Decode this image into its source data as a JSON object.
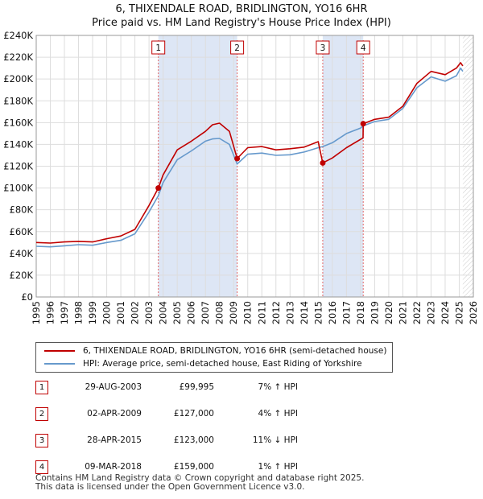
{
  "title_line1": "6, THIXENDALE ROAD, BRIDLINGTON, YO16 6HR",
  "title_line2": "Price paid vs. HM Land Registry's House Price Index (HPI)",
  "colors": {
    "property": "#c00000",
    "hpi": "#6699cc",
    "shade": "#dde6f5",
    "grid": "#dddddd",
    "marker_line": "#e06666"
  },
  "chart_data": {
    "type": "line",
    "title": "Price paid vs. HM Land Registry's House Price Index (HPI)",
    "xlabel": "",
    "ylabel": "",
    "xlim": [
      1995,
      2026
    ],
    "ylim": [
      0,
      240000
    ],
    "y_ticks": [
      {
        "value": 0,
        "label": "£0"
      },
      {
        "value": 20000,
        "label": "£20K"
      },
      {
        "value": 40000,
        "label": "£40K"
      },
      {
        "value": 60000,
        "label": "£60K"
      },
      {
        "value": 80000,
        "label": "£80K"
      },
      {
        "value": 100000,
        "label": "£100K"
      },
      {
        "value": 120000,
        "label": "£120K"
      },
      {
        "value": 140000,
        "label": "£140K"
      },
      {
        "value": 160000,
        "label": "£160K"
      },
      {
        "value": 180000,
        "label": "£180K"
      },
      {
        "value": 200000,
        "label": "£200K"
      },
      {
        "value": 220000,
        "label": "£220K"
      },
      {
        "value": 240000,
        "label": "£240K"
      }
    ],
    "x_ticks": [
      "1995",
      "1996",
      "1997",
      "1998",
      "1999",
      "2000",
      "2001",
      "2002",
      "2003",
      "2004",
      "2005",
      "2006",
      "2007",
      "2008",
      "2009",
      "2010",
      "2011",
      "2012",
      "2013",
      "2014",
      "2015",
      "2016",
      "2017",
      "2018",
      "2019",
      "2020",
      "2021",
      "2022",
      "2023",
      "2024",
      "2025",
      "2026"
    ],
    "grid": true,
    "data_end_year": 2025.25,
    "shaded_ranges": [
      [
        2003.66,
        2009.25
      ],
      [
        2015.32,
        2018.19
      ]
    ],
    "series": [
      {
        "name": "6, THIXENDALE ROAD, BRIDLINGTON, YO16 6HR (semi-detached house)",
        "color": "#c00000",
        "x": [
          1995,
          1996,
          1997,
          1998,
          1999,
          2000,
          2001,
          2002,
          2003,
          2003.66,
          2004,
          2005,
          2006,
          2007,
          2007.5,
          2008,
          2008.7,
          2009.25,
          2010,
          2011,
          2012,
          2013,
          2014,
          2015,
          2015.32,
          2016,
          2017,
          2018.18,
          2018.19,
          2019,
          2020,
          2021,
          2022,
          2023,
          2024,
          2024.8,
          2025.1,
          2025.25
        ],
        "y": [
          50000,
          49500,
          50500,
          51000,
          50500,
          53500,
          56000,
          62000,
          84000,
          99995,
          112000,
          135000,
          143000,
          152000,
          158000,
          159500,
          152000,
          127000,
          137000,
          138000,
          135000,
          136000,
          137500,
          142500,
          123000,
          127500,
          137000,
          146000,
          159000,
          163000,
          165000,
          175000,
          196000,
          207000,
          204000,
          210000,
          215000,
          212000
        ]
      },
      {
        "name": "HPI: Average price, semi-detached house, East Riding of Yorkshire",
        "color": "#6699cc",
        "x": [
          1995,
          1996,
          1997,
          1998,
          1999,
          2000,
          2001,
          2002,
          2003,
          2003.66,
          2004,
          2005,
          2006,
          2007,
          2007.5,
          2008,
          2008.7,
          2009.25,
          2010,
          2011,
          2012,
          2013,
          2014,
          2015,
          2015.32,
          2016,
          2017,
          2018,
          2018.19,
          2019,
          2020,
          2021,
          2022,
          2023,
          2024,
          2024.8,
          2025.1,
          2025.25
        ],
        "y": [
          46500,
          46000,
          47000,
          48000,
          47500,
          50000,
          52000,
          58000,
          78000,
          93000,
          105000,
          126000,
          134000,
          143000,
          145000,
          145500,
          140000,
          122000,
          131000,
          132000,
          130000,
          130500,
          133000,
          137000,
          138000,
          141500,
          150000,
          155000,
          157000,
          161000,
          163000,
          173000,
          192000,
          202000,
          198000,
          203000,
          210000,
          207000
        ]
      }
    ],
    "markers": [
      {
        "label": "1",
        "x": 2003.66,
        "y": 99995
      },
      {
        "label": "2",
        "x": 2009.25,
        "y": 127000
      },
      {
        "label": "3",
        "x": 2015.32,
        "y": 123000
      },
      {
        "label": "4",
        "x": 2018.19,
        "y": 159000
      }
    ]
  },
  "legend": {
    "property_label": "6, THIXENDALE ROAD, BRIDLINGTON, YO16 6HR (semi-detached house)",
    "hpi_label": "HPI: Average price, semi-detached house, East Riding of Yorkshire"
  },
  "sales": [
    {
      "num": "1",
      "date": "29-AUG-2003",
      "price": "£99,995",
      "hpi": "7% ↑ HPI"
    },
    {
      "num": "2",
      "date": "02-APR-2009",
      "price": "£127,000",
      "hpi": "4% ↑ HPI"
    },
    {
      "num": "3",
      "date": "28-APR-2015",
      "price": "£123,000",
      "hpi": "11% ↓ HPI"
    },
    {
      "num": "4",
      "date": "09-MAR-2018",
      "price": "£159,000",
      "hpi": "1% ↑ HPI"
    }
  ],
  "footer_line1": "Contains HM Land Registry data © Crown copyright and database right 2025.",
  "footer_line2": "This data is licensed under the Open Government Licence v3.0."
}
